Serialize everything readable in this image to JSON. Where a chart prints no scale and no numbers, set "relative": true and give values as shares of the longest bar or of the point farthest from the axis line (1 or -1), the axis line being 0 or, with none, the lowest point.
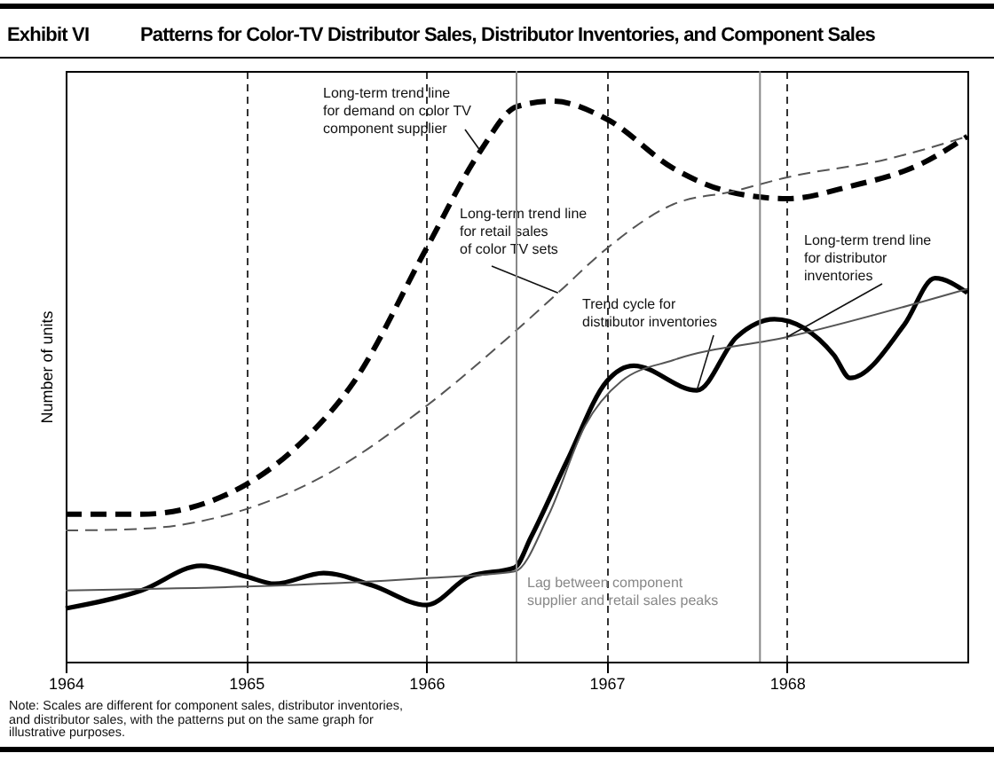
{
  "chart_data": {
    "type": "line",
    "title": "Exhibit VI",
    "subtitle": "Patterns for Color-TV Distributor Sales, Distributor Inventories, and Component Sales",
    "ylabel": "Number of units",
    "relative": true,
    "grid": "x",
    "legend": false,
    "xlim": [
      1964,
      1969
    ],
    "xticks": [
      1964,
      1965,
      1966,
      1967,
      1968
    ],
    "series": [
      {
        "name": "Long-term trend line\nfor demand on color TV\ncomponent supplier",
        "color": "#000000",
        "line_style": "dashed",
        "x": [
          1964,
          1964.42,
          1965,
          1965.3,
          1965.6,
          1966,
          1966.3,
          1966.5,
          1966.7,
          1967,
          1967.37,
          1967.67,
          1968,
          1968.35,
          1968.75,
          1969
        ],
        "values": [
          0.263,
          0.263,
          0.316,
          0.389,
          0.5,
          0.737,
          0.911,
          0.99,
          1.0,
          0.968,
          0.88,
          0.839,
          0.826,
          0.848,
          0.889,
          0.937
        ]
      },
      {
        "name": "Long-term trend line\nfor retail sales\nof color TV sets",
        "color": "#555555",
        "line_style": "dashed",
        "x": [
          1964,
          1964.42,
          1965,
          1965.4,
          1966,
          1966.4,
          1966.73,
          1967,
          1967.37,
          1967.7,
          1968,
          1968.55,
          1969
        ],
        "values": [
          0.234,
          0.237,
          0.272,
          0.326,
          0.456,
          0.563,
          0.658,
          0.737,
          0.816,
          0.839,
          0.864,
          0.896,
          0.937
        ]
      },
      {
        "name": "Trend cycle for\ndistributor inventories",
        "color": "#000000",
        "line_style": "solid",
        "x": [
          1964,
          1964.42,
          1964.75,
          1965,
          1965.16,
          1965.43,
          1965.7,
          1966,
          1966.24,
          1966.49,
          1966.58,
          1966.78,
          1967,
          1967.15,
          1967.5,
          1967.72,
          1967.93,
          1968.26,
          1968.35,
          1968.65,
          1968.82,
          1969
        ],
        "values": [
          0.095,
          0.127,
          0.171,
          0.152,
          0.139,
          0.158,
          0.136,
          0.101,
          0.152,
          0.168,
          0.222,
          0.358,
          0.5,
          0.528,
          0.484,
          0.579,
          0.611,
          0.547,
          0.506,
          0.601,
          0.684,
          0.658
        ]
      },
      {
        "name": "Long-term trend line\nfor distributor\ninventories",
        "color": "#555555",
        "line_style": "solid",
        "x": [
          1964,
          1966,
          1966.49,
          1966.68,
          1966.88,
          1967.08,
          1967.37,
          1968,
          1969
        ],
        "values": [
          0.127,
          0.149,
          0.161,
          0.263,
          0.421,
          0.5,
          0.538,
          0.579,
          0.665
        ]
      }
    ],
    "ref_lines": [
      {
        "axis": "x",
        "value": 1966.5,
        "label": "Lag between component\nsupplier and retail sales peaks",
        "color": "#888888"
      },
      {
        "axis": "x",
        "value": 1967.85,
        "color": "#888888"
      }
    ],
    "annotations": [
      "Note: Scales are different for component sales, distributor inventories,\nand distributor sales, with the patterns put on the same graph for\nillustrative purposes."
    ]
  }
}
